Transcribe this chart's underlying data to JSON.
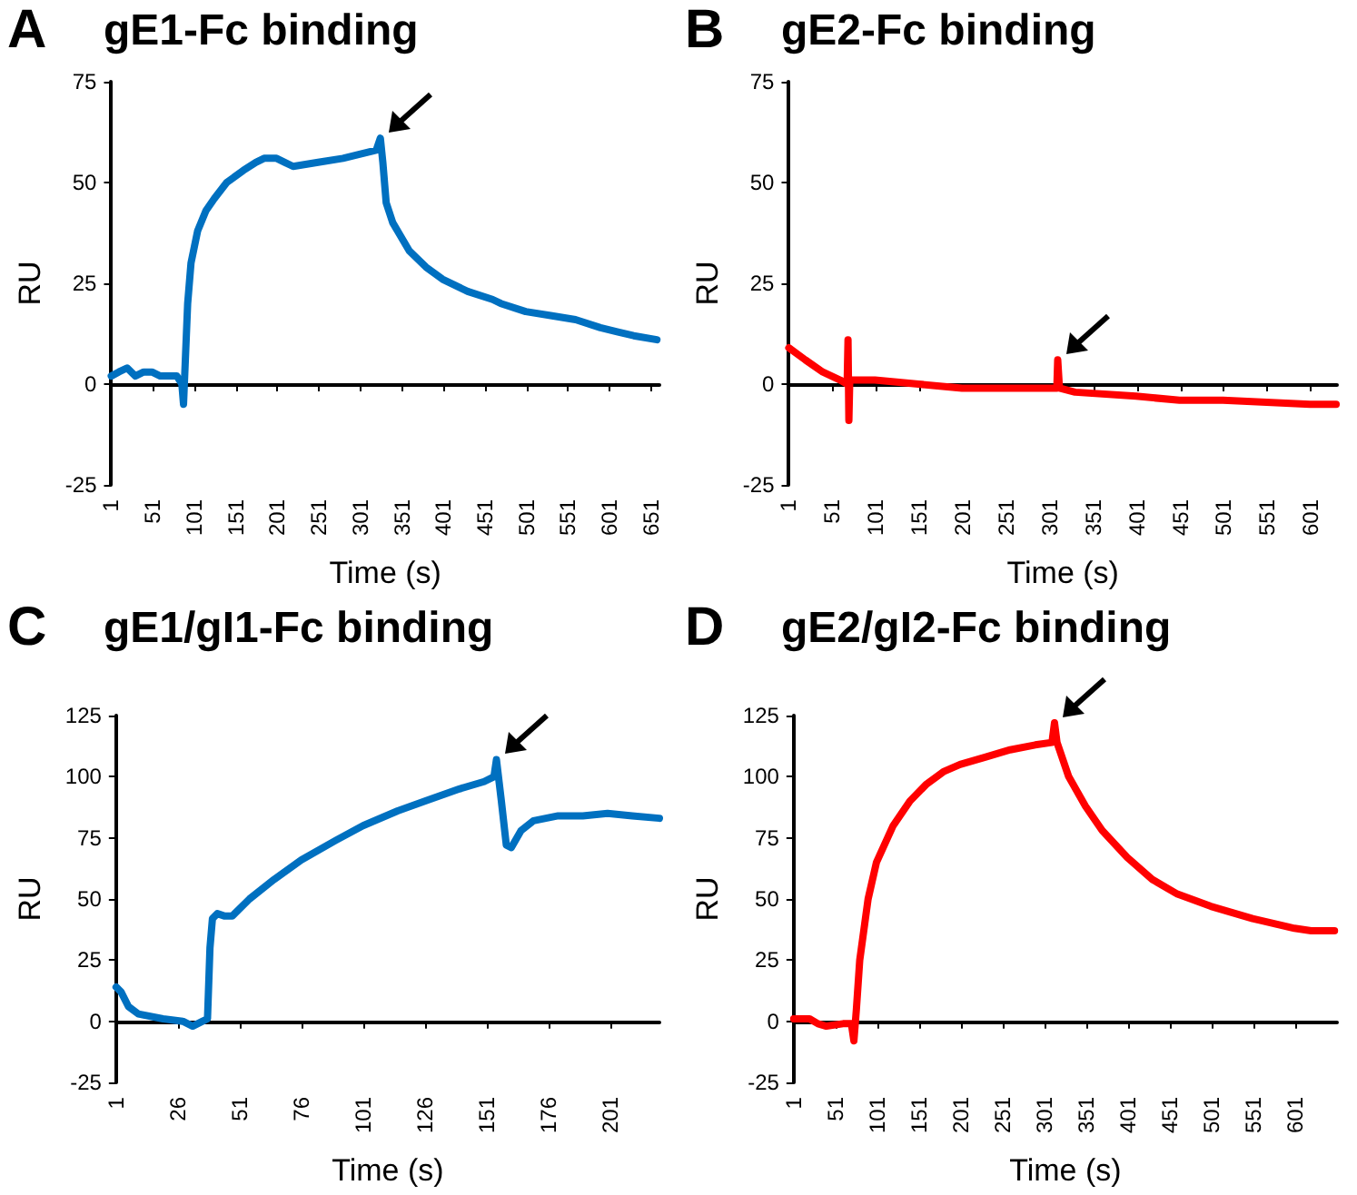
{
  "chart_data": [
    {
      "type": "line",
      "title": "gE1-Fc binding",
      "annotations": [
        "A"
      ],
      "xlabel": "Time (s)",
      "ylabel": "RU",
      "xlim": [
        1,
        661
      ],
      "xticks": [
        1,
        51,
        101,
        151,
        201,
        251,
        301,
        351,
        401,
        451,
        501,
        551,
        601,
        651
      ],
      "ylim": [
        -25,
        75
      ],
      "yticks": [
        -25,
        0,
        25,
        50,
        75
      ],
      "marker": "none",
      "line_style": "solid",
      "series": [
        {
          "color": "#0070c0",
          "x": [
            1,
            10,
            20,
            30,
            40,
            50,
            60,
            70,
            80,
            86,
            88,
            90,
            93,
            97,
            105,
            115,
            125,
            140,
            160,
            175,
            185,
            200,
            210,
            220,
            250,
            280,
            300,
            320,
            325,
            328,
            332,
            340,
            360,
            380,
            400,
            430,
            460,
            470,
            500,
            530,
            560,
            590,
            610,
            630,
            658
          ],
          "values": [
            2,
            3,
            4,
            2,
            3,
            3,
            2,
            2,
            2,
            0,
            -5,
            5,
            20,
            30,
            38,
            43,
            46,
            50,
            53,
            55,
            56,
            56,
            55,
            54,
            55,
            56,
            57,
            58,
            61,
            55,
            45,
            40,
            33,
            29,
            26,
            23,
            21,
            20,
            18,
            17,
            16,
            14,
            13,
            12,
            11
          ]
        }
      ]
    },
    {
      "type": "line",
      "title": "gE2-Fc binding",
      "annotations": [
        "B"
      ],
      "xlabel": "Time (s)",
      "ylabel": "RU",
      "xlim": [
        1,
        631
      ],
      "xticks": [
        1,
        51,
        101,
        151,
        201,
        251,
        301,
        351,
        401,
        451,
        501,
        551,
        601
      ],
      "ylim": [
        -25,
        75
      ],
      "yticks": [
        -25,
        0,
        25,
        50,
        75
      ],
      "marker": "none",
      "line_style": "solid",
      "series": [
        {
          "color": "#ff0000",
          "x": [
            1,
            20,
            40,
            60,
            68,
            69,
            70,
            71,
            100,
            150,
            200,
            250,
            300,
            309,
            310,
            312,
            330,
            400,
            450,
            500,
            550,
            600,
            630
          ],
          "values": [
            9,
            6,
            3,
            1,
            0,
            11,
            -9,
            1,
            1,
            0,
            -1,
            -1,
            -1,
            -1,
            6,
            -1,
            -2,
            -3,
            -4,
            -4,
            -4.5,
            -5,
            -5
          ]
        }
      ]
    },
    {
      "type": "line",
      "title": "gE1/gI1-Fc binding",
      "annotations": [
        "C"
      ],
      "xlabel": "Time (s)",
      "ylabel": "RU",
      "xlim": [
        1,
        221
      ],
      "xticks": [
        1,
        26,
        51,
        76,
        101,
        126,
        151,
        176,
        201
      ],
      "ylim": [
        -25,
        125
      ],
      "yticks": [
        -25,
        0,
        25,
        50,
        75,
        100,
        125
      ],
      "marker": "none",
      "line_style": "solid",
      "series": [
        {
          "color": "#0070c0",
          "x": [
            1,
            3,
            6,
            10,
            20,
            28,
            32,
            36,
            38,
            39,
            40,
            42,
            45,
            48,
            55,
            65,
            76,
            90,
            101,
            115,
            126,
            140,
            150,
            154,
            155,
            157,
            159,
            161,
            165,
            170,
            180,
            190,
            200,
            210,
            221
          ],
          "values": [
            14,
            12,
            6,
            3,
            1,
            0,
            -2,
            0,
            1,
            30,
            42,
            44,
            43,
            43,
            50,
            58,
            66,
            74,
            80,
            86,
            90,
            95,
            98,
            100,
            107,
            90,
            72,
            71,
            78,
            82,
            84,
            84,
            85,
            84,
            83
          ]
        }
      ]
    },
    {
      "type": "line",
      "title": "gE2/gI2-Fc binding",
      "annotations": [
        "D"
      ],
      "xlabel": "Time (s)",
      "ylabel": "RU",
      "xlim": [
        1,
        651
      ],
      "xticks": [
        1,
        51,
        101,
        151,
        201,
        251,
        301,
        351,
        401,
        451,
        501,
        551,
        601
      ],
      "ylim": [
        -25,
        125
      ],
      "yticks": [
        -25,
        0,
        25,
        50,
        75,
        100,
        125
      ],
      "marker": "none",
      "line_style": "solid",
      "series": [
        {
          "color": "#ff0000",
          "x": [
            1,
            20,
            30,
            40,
            60,
            70,
            73,
            76,
            80,
            90,
            100,
            120,
            140,
            160,
            180,
            200,
            230,
            260,
            290,
            310,
            313,
            316,
            330,
            350,
            370,
            400,
            430,
            460,
            500,
            550,
            600,
            620,
            648
          ],
          "values": [
            1,
            1,
            -1,
            -2,
            -1,
            -1,
            -8,
            5,
            25,
            50,
            65,
            80,
            90,
            97,
            102,
            105,
            108,
            111,
            113,
            114,
            122,
            114,
            100,
            88,
            78,
            67,
            58,
            52,
            47,
            42,
            38,
            37,
            37
          ]
        }
      ]
    }
  ]
}
